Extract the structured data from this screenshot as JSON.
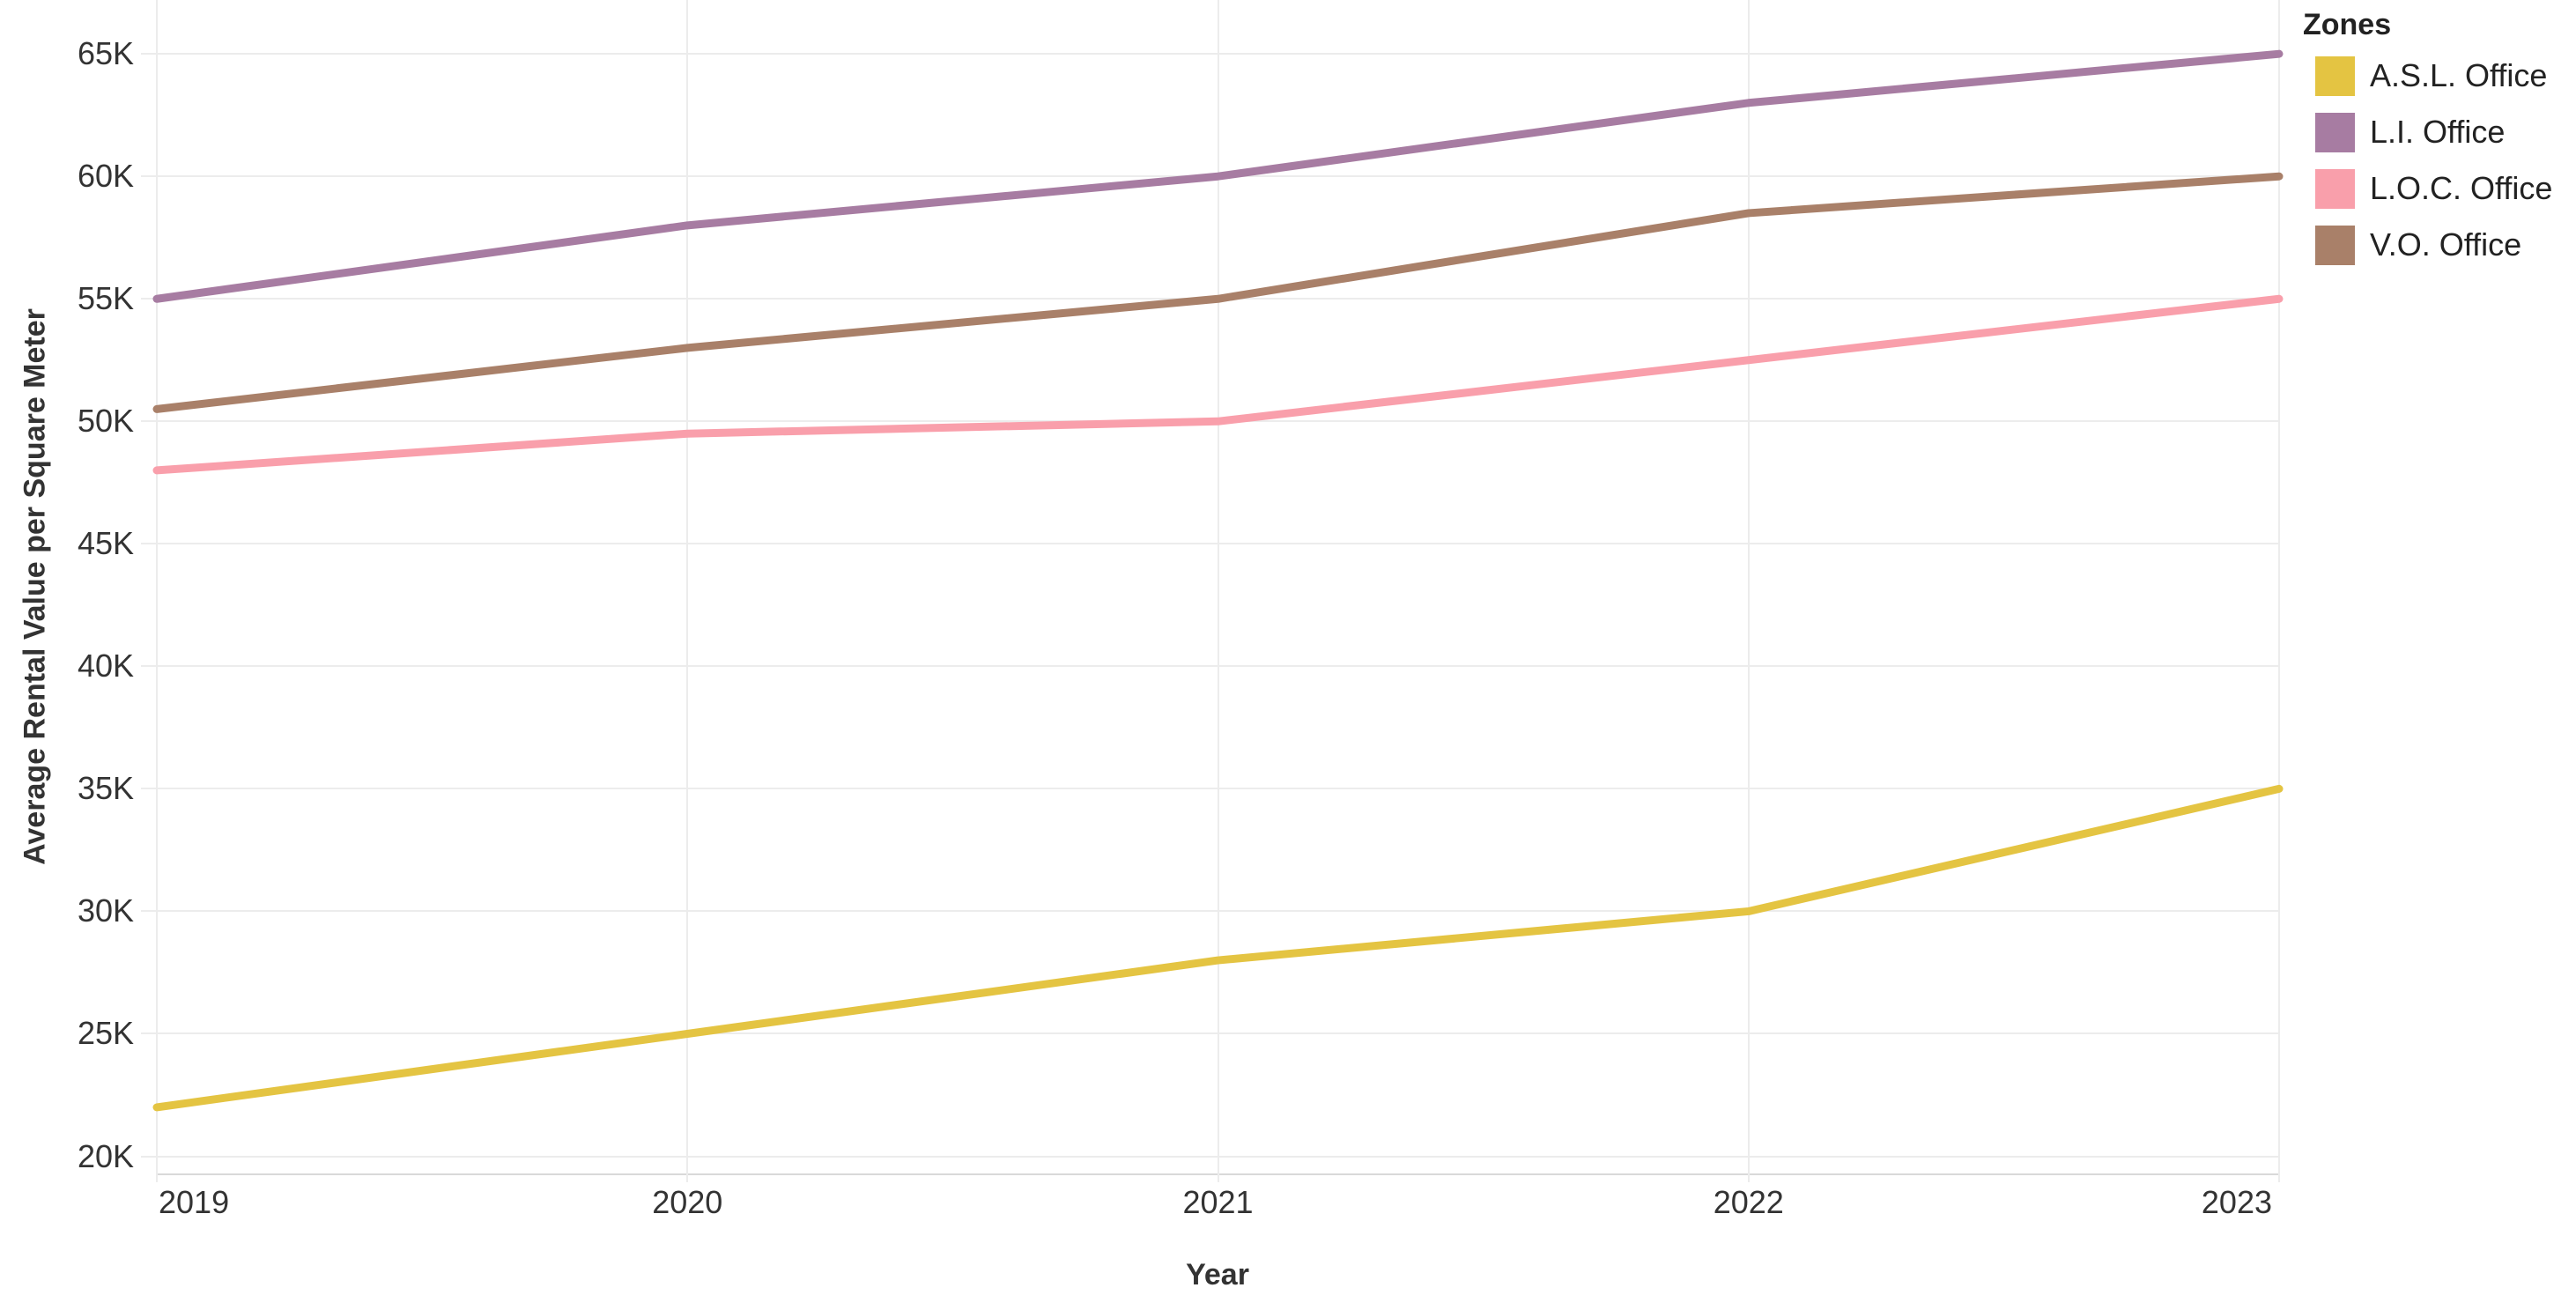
{
  "chart_data": {
    "type": "line",
    "title": "",
    "xlabel": "Year",
    "ylabel": "Average Rental Value per Square Meter",
    "x": [
      2019,
      2020,
      2021,
      2022,
      2023
    ],
    "x_tick_labels": [
      "2019",
      "2020",
      "2021",
      "2022",
      "2023"
    ],
    "ylim": [
      19300,
      67200
    ],
    "y_ticks": [
      20000,
      25000,
      30000,
      35000,
      40000,
      45000,
      50000,
      55000,
      60000,
      65000
    ],
    "y_tick_labels": [
      "20K",
      "25K",
      "30K",
      "35K",
      "40K",
      "45K",
      "50K",
      "55K",
      "60K",
      "65K"
    ],
    "grid": true,
    "legend_title": "Zones",
    "legend_position": "top-right",
    "series": [
      {
        "name": "A.S.L. Office",
        "color": "#E4C442",
        "values": [
          22000,
          25000,
          28000,
          30000,
          35000
        ]
      },
      {
        "name": "L.I. Office",
        "color": "#A77CA2",
        "values": [
          55000,
          58000,
          60000,
          63000,
          65000
        ]
      },
      {
        "name": "L.O.C. Office",
        "color": "#F99FAB",
        "values": [
          48000,
          49500,
          50000,
          52500,
          55000
        ]
      },
      {
        "name": "V.O. Office",
        "color": "#A98069",
        "values": [
          50500,
          53000,
          55000,
          58500,
          60000
        ]
      }
    ]
  },
  "colors": {
    "gridline": "#ECECEC",
    "axis_line": "#D9D9D9",
    "text": "#333333"
  }
}
